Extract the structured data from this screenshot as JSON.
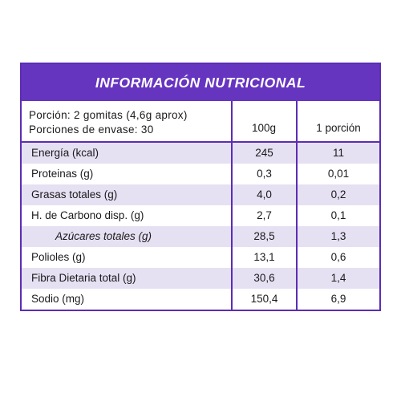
{
  "title": "INFORMACIÓN NUTRICIONAL",
  "serving": {
    "line1": "Porción: 2 gomitas (4,6g aprox)",
    "line2": "Porciones de envase: 30"
  },
  "columns": {
    "per100": "100g",
    "perPortion": "1 porción"
  },
  "rows": [
    {
      "label": "Energía (kcal)",
      "per100": "245",
      "perPortion": "11"
    },
    {
      "label": "Proteinas (g)",
      "per100": "0,3",
      "perPortion": "0,01"
    },
    {
      "label": "Grasas totales (g)",
      "per100": "4,0",
      "perPortion": "0,2"
    },
    {
      "label": "H. de Carbono disp. (g)",
      "per100": "2,7",
      "perPortion": "0,1"
    },
    {
      "label": "Azúcares totales (g)",
      "per100": "28,5",
      "perPortion": "1,3"
    },
    {
      "label": "Polioles (g)",
      "per100": "13,1",
      "perPortion": "0,6"
    },
    {
      "label": "Fibra Dietaria total (g)",
      "per100": "30,6",
      "perPortion": "1,4"
    },
    {
      "label": "Sodio (mg)",
      "per100": "150,4",
      "perPortion": "6,9"
    }
  ],
  "colors": {
    "accent": "#6635c0",
    "border": "#5b2db4",
    "shade": "#e6e0f3"
  }
}
